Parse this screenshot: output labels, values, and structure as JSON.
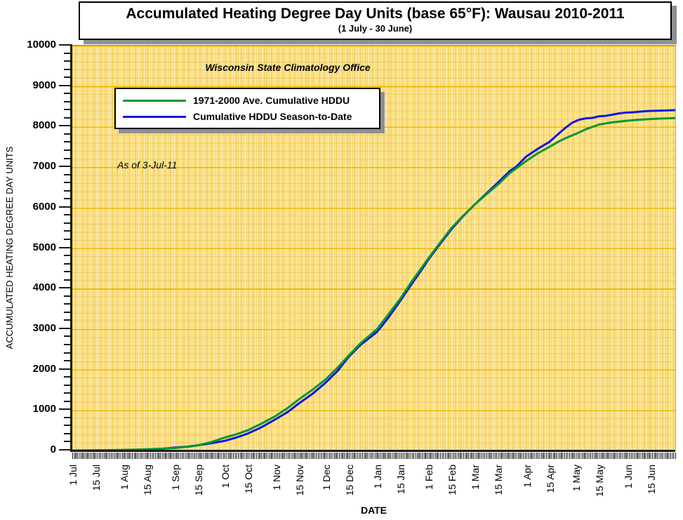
{
  "title": {
    "main": "Accumulated Heating Degree Day Units (base 65°F): Wausau 2010-2011",
    "sub": "(1 July - 30 June)"
  },
  "watermark": "Wisconsin State Climatology Office",
  "annotation": "As of 3-Jul-11",
  "chart_data": {
    "type": "line",
    "title": "Accumulated Heating Degree Day Units (base 65°F): Wausau 2010-2011",
    "subtitle": "(1 July - 30 June)",
    "xlabel": "DATE",
    "ylabel": "ACCUMULATED HEATING DEGREE DAY UNITS",
    "ylim": [
      0,
      10000
    ],
    "y_major_step": 1000,
    "y_minor_step": 200,
    "x_days_total": 365,
    "grid": "on",
    "legend_position": "upper-left",
    "colors": {
      "plot_background": "#FFF6D0",
      "vertical_grid": "#F0C228",
      "minor_horizontal_grid": "#F6CCA2",
      "major_horizontal_grid": "#EEB800"
    },
    "xticks": [
      {
        "label": "1 Jul",
        "day": 0
      },
      {
        "label": "15 Jul",
        "day": 14
      },
      {
        "label": "1 Aug",
        "day": 31
      },
      {
        "label": "15 Aug",
        "day": 45
      },
      {
        "label": "1 Sep",
        "day": 62
      },
      {
        "label": "15 Sep",
        "day": 76
      },
      {
        "label": "1 Oct",
        "day": 92
      },
      {
        "label": "15 Oct",
        "day": 106
      },
      {
        "label": "1 Nov",
        "day": 123
      },
      {
        "label": "15 Nov",
        "day": 137
      },
      {
        "label": "1 Dec",
        "day": 153
      },
      {
        "label": "15 Dec",
        "day": 167
      },
      {
        "label": "1 Jan",
        "day": 184
      },
      {
        "label": "15 Jan",
        "day": 198
      },
      {
        "label": "1 Feb",
        "day": 215
      },
      {
        "label": "15 Feb",
        "day": 229
      },
      {
        "label": "1 Mar",
        "day": 243
      },
      {
        "label": "15 Mar",
        "day": 257
      },
      {
        "label": "1 Apr",
        "day": 274
      },
      {
        "label": "15 Apr",
        "day": 288
      },
      {
        "label": "1 May",
        "day": 304
      },
      {
        "label": "15 May",
        "day": 318
      },
      {
        "label": "1 Jun",
        "day": 335
      },
      {
        "label": "15 Jun",
        "day": 349
      }
    ],
    "series": [
      {
        "name": "1971-2000 Ave. Cumulative HDDU",
        "color": "#009632",
        "points": [
          [
            0,
            0
          ],
          [
            14,
            6
          ],
          [
            31,
            15
          ],
          [
            45,
            30
          ],
          [
            62,
            60
          ],
          [
            76,
            130
          ],
          [
            84,
            210
          ],
          [
            92,
            320
          ],
          [
            99,
            400
          ],
          [
            106,
            500
          ],
          [
            114,
            660
          ],
          [
            123,
            860
          ],
          [
            130,
            1050
          ],
          [
            137,
            1270
          ],
          [
            145,
            1500
          ],
          [
            153,
            1760
          ],
          [
            160,
            2040
          ],
          [
            167,
            2350
          ],
          [
            174,
            2650
          ],
          [
            184,
            3000
          ],
          [
            191,
            3370
          ],
          [
            198,
            3750
          ],
          [
            205,
            4180
          ],
          [
            211,
            4520
          ],
          [
            215,
            4750
          ],
          [
            222,
            5130
          ],
          [
            229,
            5500
          ],
          [
            236,
            5800
          ],
          [
            243,
            6080
          ],
          [
            250,
            6330
          ],
          [
            257,
            6570
          ],
          [
            264,
            6850
          ],
          [
            274,
            7150
          ],
          [
            281,
            7340
          ],
          [
            288,
            7500
          ],
          [
            294,
            7640
          ],
          [
            298,
            7720
          ],
          [
            304,
            7820
          ],
          [
            311,
            7950
          ],
          [
            318,
            8050
          ],
          [
            325,
            8100
          ],
          [
            334,
            8140
          ],
          [
            341,
            8165
          ],
          [
            348,
            8185
          ],
          [
            356,
            8200
          ],
          [
            364,
            8210
          ]
        ]
      },
      {
        "name": "Cumulative HDDU Season-to-Date",
        "color": "#1414E6",
        "points": [
          [
            0,
            0
          ],
          [
            14,
            3
          ],
          [
            31,
            8
          ],
          [
            45,
            20
          ],
          [
            55,
            45
          ],
          [
            62,
            75
          ],
          [
            70,
            95
          ],
          [
            76,
            130
          ],
          [
            84,
            180
          ],
          [
            92,
            240
          ],
          [
            99,
            320
          ],
          [
            106,
            420
          ],
          [
            114,
            570
          ],
          [
            123,
            780
          ],
          [
            130,
            950
          ],
          [
            137,
            1170
          ],
          [
            145,
            1400
          ],
          [
            153,
            1680
          ],
          [
            160,
            1960
          ],
          [
            167,
            2320
          ],
          [
            174,
            2610
          ],
          [
            184,
            2930
          ],
          [
            191,
            3290
          ],
          [
            198,
            3700
          ],
          [
            205,
            4120
          ],
          [
            211,
            4470
          ],
          [
            215,
            4720
          ],
          [
            222,
            5100
          ],
          [
            229,
            5470
          ],
          [
            236,
            5790
          ],
          [
            243,
            6080
          ],
          [
            250,
            6350
          ],
          [
            257,
            6620
          ],
          [
            264,
            6900
          ],
          [
            268,
            7010
          ],
          [
            274,
            7260
          ],
          [
            281,
            7450
          ],
          [
            288,
            7620
          ],
          [
            294,
            7840
          ],
          [
            298,
            7980
          ],
          [
            302,
            8100
          ],
          [
            306,
            8170
          ],
          [
            310,
            8205
          ],
          [
            314,
            8215
          ],
          [
            318,
            8255
          ],
          [
            322,
            8265
          ],
          [
            326,
            8295
          ],
          [
            330,
            8325
          ],
          [
            334,
            8345
          ],
          [
            338,
            8352
          ],
          [
            342,
            8368
          ],
          [
            348,
            8386
          ],
          [
            352,
            8390
          ],
          [
            356,
            8396
          ],
          [
            360,
            8400
          ],
          [
            364,
            8405
          ]
        ]
      }
    ]
  }
}
